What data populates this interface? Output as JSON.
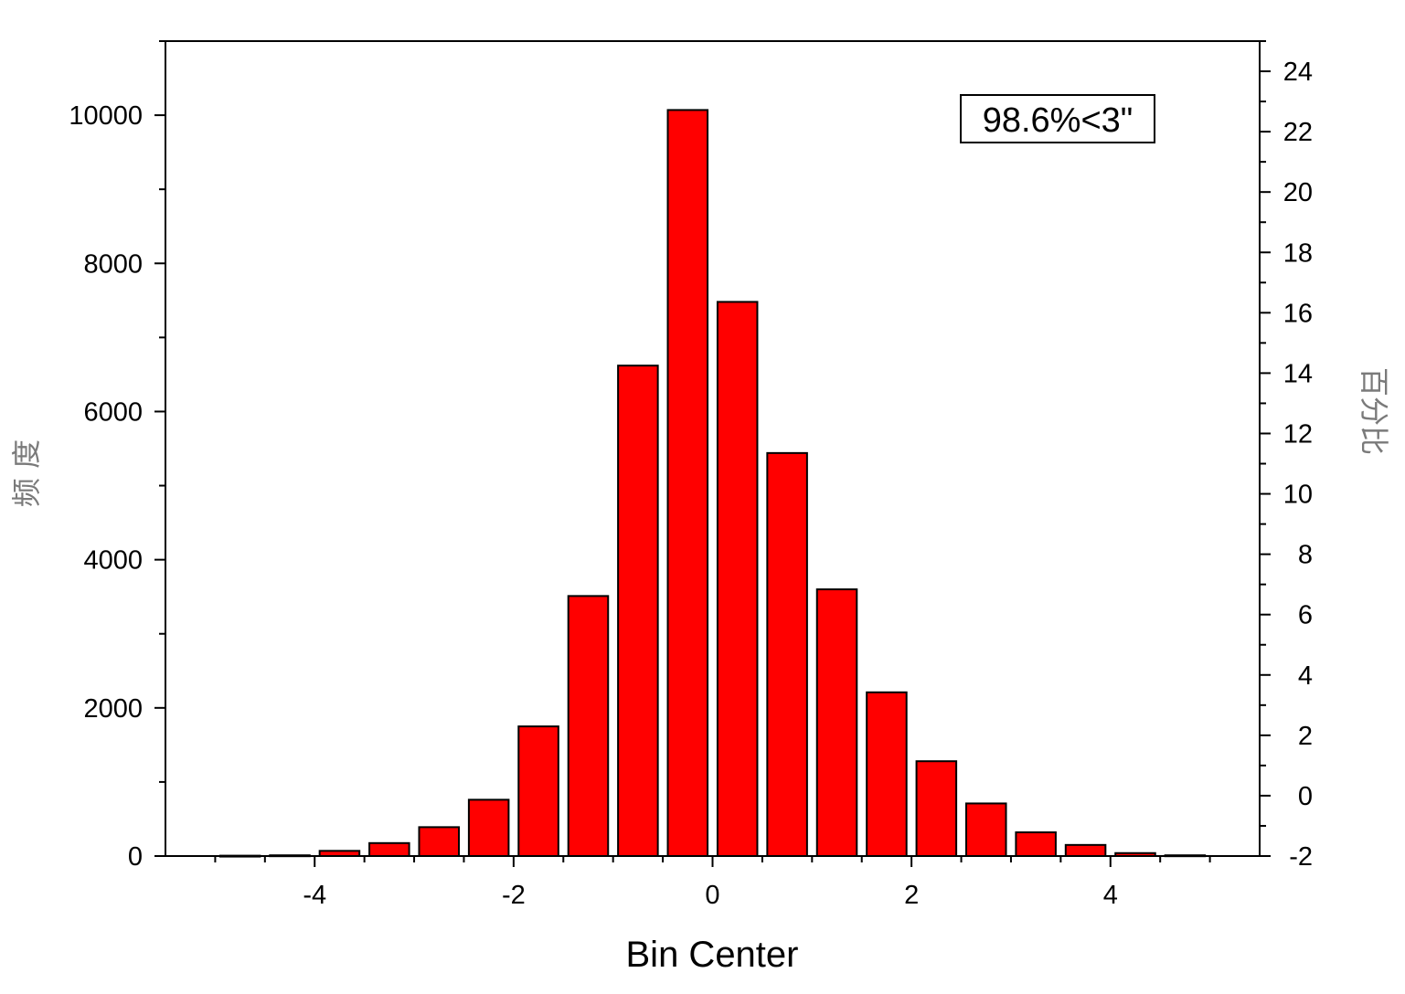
{
  "chart_data": {
    "type": "bar",
    "xlabel": "Bin Center",
    "ylabel": "频 度",
    "y2label": "百分比",
    "annotation": "98.6%<3\"",
    "bar_color": "#ff0000",
    "x_ticks": [
      "-4",
      "-2",
      "0",
      "2",
      "4"
    ],
    "y_ticks": [
      "0",
      "2000",
      "4000",
      "6000",
      "8000",
      "10000"
    ],
    "y2_ticks": [
      "-2",
      "0",
      "2",
      "4",
      "6",
      "8",
      "10",
      "12",
      "14",
      "16",
      "18",
      "20",
      "22",
      "24"
    ],
    "xlim": [
      -5.5,
      5.5
    ],
    "ylim": [
      0,
      11000
    ],
    "y2lim": [
      -2,
      25
    ],
    "bin_width": 0.5,
    "x": [
      -4.75,
      -4.25,
      -3.75,
      -3.25,
      -2.75,
      -2.25,
      -1.75,
      -1.25,
      -0.75,
      -0.25,
      0.25,
      0.75,
      1.25,
      1.75,
      2.25,
      2.75,
      3.25,
      3.75,
      4.25,
      4.75
    ],
    "values": [
      5,
      10,
      70,
      175,
      390,
      760,
      1750,
      3510,
      6620,
      10070,
      7480,
      5440,
      3600,
      2210,
      1280,
      710,
      320,
      150,
      40,
      10
    ]
  }
}
